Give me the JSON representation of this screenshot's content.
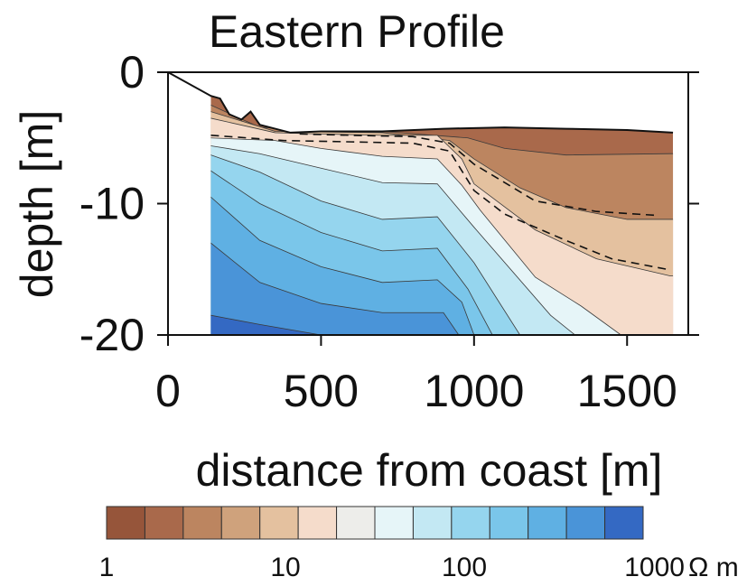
{
  "chart_data": {
    "type": "heatmap",
    "title": "Eastern Profile",
    "xlabel": "distance from coast [m]",
    "ylabel": "depth [m]",
    "xlim": [
      0,
      1700
    ],
    "ylim": [
      -20,
      0
    ],
    "x_ticks": [
      0,
      500,
      1000,
      1500
    ],
    "y_ticks": [
      0,
      -10,
      -20
    ],
    "x_tick_labels": [
      "0",
      "500",
      "1000",
      "1500"
    ],
    "y_tick_labels": [
      "0",
      "-10",
      "-20"
    ],
    "grid": false,
    "surface": [
      {
        "x": 0,
        "y": 0
      },
      {
        "x": 140,
        "y": -1.8
      },
      {
        "x": 170,
        "y": -2.0
      },
      {
        "x": 200,
        "y": -3.2
      },
      {
        "x": 240,
        "y": -3.6
      },
      {
        "x": 270,
        "y": -3.0
      },
      {
        "x": 300,
        "y": -4.0
      },
      {
        "x": 350,
        "y": -4.3
      },
      {
        "x": 400,
        "y": -4.6
      },
      {
        "x": 500,
        "y": -4.5
      },
      {
        "x": 700,
        "y": -4.5
      },
      {
        "x": 900,
        "y": -4.3
      },
      {
        "x": 1100,
        "y": -4.2
      },
      {
        "x": 1300,
        "y": -4.3
      },
      {
        "x": 1500,
        "y": -4.4
      },
      {
        "x": 1650,
        "y": -4.6
      }
    ],
    "model_extent": {
      "x_start": 140,
      "x_end": 1650,
      "bottom_left": -20,
      "bottom_right": -20
    },
    "colorbar": {
      "scale": "log",
      "range": [
        1,
        1000
      ],
      "unit": "Ω m",
      "tick_labels": [
        "1",
        "10",
        "100",
        "1000"
      ],
      "tick_values": [
        1,
        10,
        100,
        1000
      ],
      "colors": [
        "#96553a",
        "#a9694b",
        "#bc8560",
        "#cfa27c",
        "#e4c19f",
        "#f5dccb",
        "#ededea",
        "#e6f5f8",
        "#c3e8f3",
        "#95d5ee",
        "#7ac6ea",
        "#5fb0e3",
        "#4a94d8",
        "#3469c3"
      ]
    },
    "bands": [
      {
        "name": "band-1",
        "color": "#3469c3",
        "top": [
          [
            140,
            -18.5
          ],
          [
            300,
            -19.2
          ],
          [
            500,
            -20.0
          ]
        ]
      },
      {
        "name": "band-2",
        "color": "#4a94d8",
        "top": [
          [
            140,
            -13.0
          ],
          [
            300,
            -16.0
          ],
          [
            500,
            -17.6
          ],
          [
            700,
            -18.3
          ],
          [
            900,
            -18.3
          ],
          [
            950,
            -20.0
          ]
        ]
      },
      {
        "name": "band-3",
        "color": "#5fb0e3",
        "top": [
          [
            140,
            -9.5
          ],
          [
            300,
            -12.8
          ],
          [
            500,
            -14.8
          ],
          [
            700,
            -16.0
          ],
          [
            880,
            -15.8
          ],
          [
            960,
            -17.5
          ],
          [
            1000,
            -20.0
          ]
        ]
      },
      {
        "name": "band-4",
        "color": "#7ac6ea",
        "top": [
          [
            140,
            -7.5
          ],
          [
            300,
            -10.0
          ],
          [
            500,
            -12.2
          ],
          [
            700,
            -13.6
          ],
          [
            880,
            -13.4
          ],
          [
            980,
            -16.5
          ],
          [
            1060,
            -20.0
          ]
        ]
      },
      {
        "name": "band-5",
        "color": "#95d5ee",
        "top": [
          [
            140,
            -6.3
          ],
          [
            300,
            -7.6
          ],
          [
            500,
            -9.8
          ],
          [
            700,
            -11.2
          ],
          [
            880,
            -11.0
          ],
          [
            1000,
            -14.5
          ],
          [
            1150,
            -20.0
          ]
        ]
      },
      {
        "name": "band-6",
        "color": "#c3e8f3",
        "top": [
          [
            140,
            -5.6
          ],
          [
            300,
            -6.2
          ],
          [
            500,
            -7.3
          ],
          [
            700,
            -8.4
          ],
          [
            880,
            -8.5
          ],
          [
            1000,
            -11.8
          ],
          [
            1250,
            -18.5
          ],
          [
            1330,
            -20.0
          ]
        ]
      },
      {
        "name": "band-7",
        "color": "#e6f5f8",
        "top": [
          [
            140,
            -5.0
          ],
          [
            350,
            -5.2
          ],
          [
            500,
            -5.8
          ],
          [
            700,
            -6.4
          ],
          [
            880,
            -6.6
          ],
          [
            960,
            -8.6
          ],
          [
            1020,
            -10.5
          ],
          [
            1200,
            -15.6
          ],
          [
            1350,
            -17.8
          ],
          [
            1480,
            -20.0
          ]
        ]
      },
      {
        "name": "band-8",
        "color": "#f5dccb",
        "top": [
          [
            140,
            -3.5
          ],
          [
            350,
            -4.6
          ],
          [
            500,
            -4.7
          ],
          [
            700,
            -4.8
          ],
          [
            880,
            -4.8
          ],
          [
            960,
            -6.6
          ],
          [
            1000,
            -8.5
          ],
          [
            1200,
            -12.0
          ],
          [
            1400,
            -14.2
          ],
          [
            1640,
            -15.5
          ]
        ]
      },
      {
        "name": "band-9",
        "color": "#e4c19f",
        "top": [
          [
            140,
            -3.0
          ],
          [
            350,
            -4.5
          ],
          [
            700,
            -4.6
          ],
          [
            920,
            -5.2
          ],
          [
            1000,
            -6.6
          ],
          [
            1150,
            -8.8
          ],
          [
            1300,
            -10.3
          ],
          [
            1500,
            -11.2
          ],
          [
            1640,
            -11.2
          ]
        ]
      },
      {
        "name": "band-10",
        "color": "#bc8560",
        "top": [
          [
            140,
            -2.5
          ],
          [
            300,
            -4.2
          ],
          [
            700,
            -4.5
          ],
          [
            980,
            -5.0
          ],
          [
            1100,
            -5.8
          ],
          [
            1300,
            -6.3
          ],
          [
            1640,
            -6.2
          ]
        ]
      }
    ],
    "dashed_contours": [
      [
        [
          140,
          -4.8
        ],
        [
          380,
          -5.2
        ],
        [
          600,
          -5.3
        ],
        [
          800,
          -5.4
        ],
        [
          920,
          -6.0
        ],
        [
          1000,
          -9.0
        ],
        [
          1100,
          -10.8
        ],
        [
          1300,
          -12.8
        ],
        [
          1450,
          -14.2
        ],
        [
          1630,
          -15.0
        ]
      ],
      [
        [
          430,
          -4.7
        ],
        [
          600,
          -4.8
        ],
        [
          800,
          -4.9
        ],
        [
          920,
          -5.4
        ],
        [
          1000,
          -7.0
        ],
        [
          1200,
          -9.8
        ],
        [
          1400,
          -10.6
        ],
        [
          1600,
          -10.9
        ]
      ]
    ]
  }
}
